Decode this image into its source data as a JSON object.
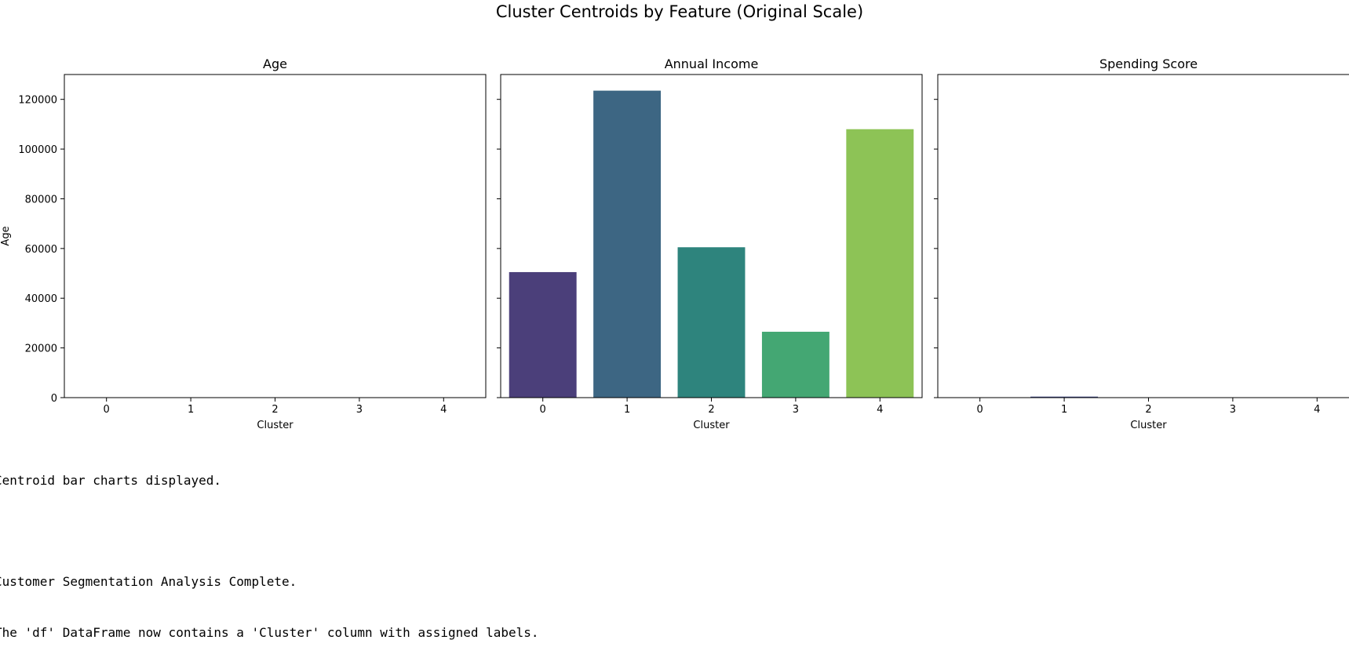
{
  "chart_data": {
    "type": "bar",
    "title": "Cluster Centroids by Feature (Original Scale)",
    "sharey": true,
    "ylim": [
      0,
      130000
    ],
    "yticks": [
      0,
      20000,
      40000,
      60000,
      80000,
      100000,
      120000
    ],
    "colors": [
      "#482878",
      "#3e4989",
      "#31688e",
      "#26828e",
      "#1f9e89",
      "#35b779",
      "#6ece58",
      "#b5de2b"
    ],
    "panels": [
      {
        "title": "Age",
        "xlabel": "Cluster",
        "ylabel": "Age",
        "categories": [
          "0",
          "1",
          "2",
          "3",
          "4"
        ],
        "values": [
          45,
          52,
          38,
          29,
          41
        ],
        "colors": [
          "#482878",
          "#3e4989",
          "#26828e",
          "#1f9e89",
          "#6ece58"
        ]
      },
      {
        "title": "Annual Income",
        "xlabel": "Cluster",
        "ylabel": "",
        "categories": [
          "0",
          "1",
          "2",
          "3",
          "4"
        ],
        "values": [
          50500,
          123500,
          60500,
          26500,
          108000
        ],
        "colors": [
          "#4b3f7a",
          "#3d6683",
          "#2e847d",
          "#44a773",
          "#8dc356"
        ]
      },
      {
        "title": "Spending Score",
        "xlabel": "Cluster",
        "ylabel": "",
        "categories": [
          "0",
          "1",
          "2",
          "3",
          "4"
        ],
        "values": [
          50,
          400,
          60,
          40,
          55
        ],
        "colors": [
          "#482878",
          "#3e4989",
          "#26828e",
          "#1f9e89",
          "#6ece58"
        ]
      }
    ]
  },
  "console": {
    "lines": [
      "Centroid bar charts displayed.",
      "",
      "Customer Segmentation Analysis Complete.",
      "The 'df' DataFrame now contains a 'Cluster' column with assigned labels."
    ]
  }
}
